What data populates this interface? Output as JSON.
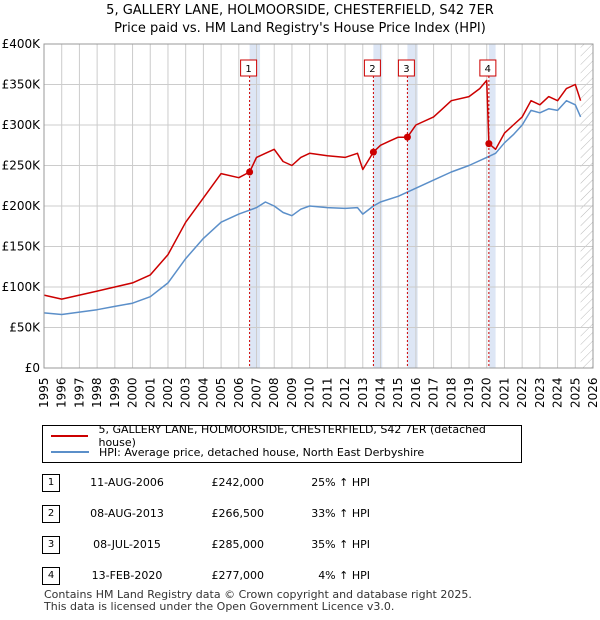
{
  "title_line1": "5, GALLERY LANE, HOLMOORSIDE, CHESTERFIELD, S42 7ER",
  "title_line2": "Price paid vs. HM Land Registry's House Price Index (HPI)",
  "colors": {
    "property": "#cc0000",
    "hpi": "#5b8fc9",
    "shade": "#dde6f5",
    "grid": "#cccccc",
    "marker_border": "#cc0000"
  },
  "chart_data": {
    "type": "line",
    "title": "Price paid vs. HM Land Registry's House Price Index (HPI)",
    "xlabel": "",
    "ylabel": "",
    "xlim": [
      1995,
      2026
    ],
    "ylim": [
      0,
      400000
    ],
    "y_ticks": [
      0,
      50000,
      100000,
      150000,
      200000,
      250000,
      300000,
      350000,
      400000
    ],
    "y_tick_labels": [
      "£0",
      "£50K",
      "£100K",
      "£150K",
      "£200K",
      "£250K",
      "£300K",
      "£350K",
      "£400K"
    ],
    "x_ticks": [
      1995,
      1996,
      1997,
      1998,
      1999,
      2000,
      2001,
      2002,
      2003,
      2004,
      2005,
      2006,
      2007,
      2008,
      2009,
      2010,
      2011,
      2012,
      2013,
      2014,
      2015,
      2016,
      2017,
      2018,
      2019,
      2020,
      2021,
      2022,
      2023,
      2024,
      2025,
      2026
    ],
    "x_tick_labels": [
      "1995",
      "1996",
      "1997",
      "1998",
      "1999",
      "2000",
      "2001",
      "2002",
      "2003",
      "2004",
      "2005",
      "2006",
      "2007",
      "2008",
      "2009",
      "2010",
      "2011",
      "2012",
      "2013",
      "2014",
      "2015",
      "2016",
      "2017",
      "2018",
      "2019",
      "2020",
      "2021",
      "2022",
      "2023",
      "2024",
      "2025",
      "2026"
    ],
    "grid": true,
    "hatched_from": 2025.3,
    "shaded_periods": [
      [
        2006.61,
        2007.2
      ],
      [
        2013.6,
        2014.1
      ],
      [
        2015.52,
        2016.1
      ],
      [
        2020.12,
        2020.5
      ]
    ],
    "series": [
      {
        "name": "5, GALLERY LANE, HOLMOORSIDE, CHESTERFIELD, S42 7ER (detached house)",
        "x": [
          1995,
          1996,
          1997,
          1998,
          1999,
          2000,
          2001,
          2002,
          2003,
          2004,
          2005,
          2006,
          2006.61,
          2007,
          2007.5,
          2008,
          2008.5,
          2009,
          2009.5,
          2010,
          2011,
          2012,
          2012.7,
          2013,
          2013.6,
          2014,
          2014.5,
          2015,
          2015.52,
          2016,
          2017,
          2017.5,
          2018,
          2019,
          2019.6,
          2020.0,
          2020.12,
          2020.5,
          2021,
          2021.5,
          2022,
          2022.5,
          2023,
          2023.5,
          2024,
          2024.5,
          2025,
          2025.3
        ],
        "y": [
          90000,
          85000,
          90000,
          95000,
          100000,
          105000,
          115000,
          140000,
          180000,
          210000,
          240000,
          235000,
          242000,
          260000,
          265000,
          270000,
          255000,
          250000,
          260000,
          265000,
          262000,
          260000,
          265000,
          245000,
          266500,
          275000,
          280000,
          285000,
          285000,
          300000,
          310000,
          320000,
          330000,
          335000,
          345000,
          355000,
          277000,
          270000,
          290000,
          300000,
          310000,
          330000,
          325000,
          335000,
          330000,
          345000,
          350000,
          330000
        ]
      },
      {
        "name": "HPI: Average price, detached house, North East Derbyshire",
        "x": [
          1995,
          1996,
          1997,
          1998,
          1999,
          2000,
          2001,
          2002,
          2003,
          2004,
          2005,
          2006,
          2007,
          2007.5,
          2008,
          2008.5,
          2009,
          2009.5,
          2010,
          2011,
          2012,
          2012.7,
          2013,
          2013.6,
          2014,
          2015,
          2016,
          2017,
          2018,
          2019,
          2020,
          2020.5,
          2021,
          2021.5,
          2022,
          2022.5,
          2023,
          2023.5,
          2024,
          2024.5,
          2025,
          2025.3
        ],
        "y": [
          68000,
          66000,
          69000,
          72000,
          76000,
          80000,
          88000,
          105000,
          135000,
          160000,
          180000,
          190000,
          198000,
          205000,
          200000,
          192000,
          188000,
          196000,
          200000,
          198000,
          197000,
          198000,
          190000,
          200000,
          205000,
          212000,
          222000,
          232000,
          242000,
          250000,
          260000,
          265000,
          278000,
          288000,
          300000,
          318000,
          315000,
          320000,
          318000,
          330000,
          325000,
          310000
        ]
      }
    ],
    "markers": [
      {
        "label": "1",
        "x": 2006.61,
        "y": 242000
      },
      {
        "label": "2",
        "x": 2013.6,
        "y": 266500
      },
      {
        "label": "3",
        "x": 2015.52,
        "y": 285000
      },
      {
        "label": "4",
        "x": 2020.12,
        "y": 277000
      }
    ]
  },
  "legend": {
    "property_label": "5, GALLERY LANE, HOLMOORSIDE, CHESTERFIELD, S42 7ER (detached house)",
    "hpi_label": "HPI: Average price, detached house, North East Derbyshire"
  },
  "sales": [
    {
      "num": "1",
      "date": "11-AUG-2006",
      "price": "£242,000",
      "hpi": "25% ↑ HPI"
    },
    {
      "num": "2",
      "date": "08-AUG-2013",
      "price": "£266,500",
      "hpi": "33% ↑ HPI"
    },
    {
      "num": "3",
      "date": "08-JUL-2015",
      "price": "£285,000",
      "hpi": "35% ↑ HPI"
    },
    {
      "num": "4",
      "date": "13-FEB-2020",
      "price": "£277,000",
      "hpi": "4% ↑ HPI"
    }
  ],
  "footer": {
    "line1": "Contains HM Land Registry data © Crown copyright and database right 2025.",
    "line2": "This data is licensed under the Open Government Licence v3.0."
  }
}
